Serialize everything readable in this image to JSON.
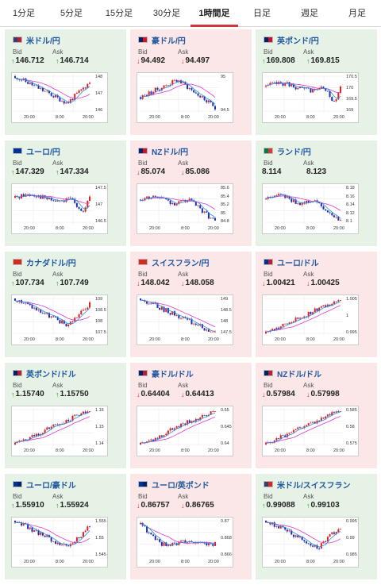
{
  "tabs": [
    {
      "label": "1分足",
      "active": false
    },
    {
      "label": "5分足",
      "active": false
    },
    {
      "label": "15分足",
      "active": false
    },
    {
      "label": "30分足",
      "active": false
    },
    {
      "label": "1時間足",
      "active": true
    },
    {
      "label": "日足",
      "active": false
    },
    {
      "label": "週足",
      "active": false
    },
    {
      "label": "月足",
      "active": false
    }
  ],
  "labels": {
    "bid": "Bid",
    "ask": "Ask"
  },
  "colors": {
    "up_bg": "#e6f2e6",
    "down_bg": "#fbe7e7",
    "up_arrow": "#2f9a2f",
    "down_arrow": "#d03636",
    "candle_up": "#e02020",
    "candle_down": "#1a2fb0",
    "ma1": "#d23cd2",
    "ma2": "#2a8fd8"
  },
  "pairs": [
    {
      "name": "米ドル/円",
      "flag": [
        "#3c3b6e",
        "#b22234"
      ],
      "bg": "up",
      "bid": "146.712",
      "ask": "146.714",
      "bid_dir": "up",
      "ask_dir": "up",
      "yticks": [
        "148",
        "147",
        "146"
      ],
      "xticks": [
        "20:00",
        "8:00",
        "20:00"
      ],
      "seed": 11,
      "trend": "down_up"
    },
    {
      "name": "豪ドル/円",
      "flag": [
        "#012169",
        "#cf142b"
      ],
      "bg": "down",
      "bid": "94.492",
      "ask": "94.497",
      "bid_dir": "down",
      "ask_dir": "down",
      "yticks": [
        "95",
        "94.5"
      ],
      "xticks": [
        "20:00",
        "8:00",
        "20:00"
      ],
      "seed": 23,
      "trend": "up_down"
    },
    {
      "name": "英ポンド/円",
      "flag": [
        "#012169",
        "#c8102e"
      ],
      "bg": "up",
      "bid": "169.808",
      "ask": "169.815",
      "bid_dir": "up",
      "ask_dir": "up",
      "yticks": [
        "170.5",
        "170",
        "169.5",
        "169"
      ],
      "xticks": [
        "20:00",
        "8:00",
        "20:00"
      ],
      "seed": 37,
      "trend": "flat_dip"
    },
    {
      "name": "ユーロ/円",
      "flag": [
        "#003399",
        "#003399"
      ],
      "bg": "up",
      "bid": "147.329",
      "ask": "147.334",
      "bid_dir": "up",
      "ask_dir": "up",
      "yticks": [
        "147.5",
        "147",
        "146.5"
      ],
      "xticks": [
        "20:00",
        "8:00",
        "20:00"
      ],
      "seed": 41,
      "trend": "flat_dip"
    },
    {
      "name": "NZドル/円",
      "flag": [
        "#012169",
        "#cc142b"
      ],
      "bg": "down",
      "bid": "85.074",
      "ask": "85.086",
      "bid_dir": "down",
      "ask_dir": "down",
      "yticks": [
        "85.6",
        "85.4",
        "85.2",
        "85",
        "84.8"
      ],
      "xticks": [
        "20:00",
        "8:00",
        "20:00"
      ],
      "seed": 53,
      "trend": "flat_down"
    },
    {
      "name": "ランド/円",
      "flag": [
        "#007a4d",
        "#de3831"
      ],
      "bg": "up",
      "bid": "8.114",
      "ask": "8.123",
      "bid_dir": "",
      "ask_dir": "",
      "yticks": [
        "8.18",
        "8.16",
        "8.14",
        "8.12",
        "8.1"
      ],
      "xticks": [
        "20:00",
        "8:00",
        "20:00"
      ],
      "seed": 61,
      "trend": "flat_down"
    },
    {
      "name": "カナダドル/円",
      "flag": [
        "#d52b1e",
        "#d52b1e"
      ],
      "bg": "up",
      "bid": "107.734",
      "ask": "107.749",
      "bid_dir": "up",
      "ask_dir": "up",
      "yticks": [
        "109",
        "108.5",
        "108",
        "107.5"
      ],
      "xticks": [
        "20:00",
        "8:00",
        "20:00"
      ],
      "seed": 71,
      "trend": "down_up"
    },
    {
      "name": "スイスフラン/円",
      "flag": [
        "#d52b1e",
        "#d52b1e"
      ],
      "bg": "down",
      "bid": "148.042",
      "ask": "148.058",
      "bid_dir": "down",
      "ask_dir": "down",
      "yticks": [
        "149",
        "148.5",
        "148",
        "147.5"
      ],
      "xticks": [
        "20:00",
        "8:00",
        "20:00"
      ],
      "seed": 83,
      "trend": "down"
    },
    {
      "name": "ユーロ/ドル",
      "flag": [
        "#003399",
        "#b22234"
      ],
      "bg": "down",
      "bid": "1.00421",
      "ask": "1.00425",
      "bid_dir": "down",
      "ask_dir": "down",
      "yticks": [
        "1.005",
        "1",
        "0.995"
      ],
      "xticks": [
        "20:00",
        "8:00",
        "20:00"
      ],
      "seed": 97,
      "trend": "up"
    },
    {
      "name": "英ポンド/ドル",
      "flag": [
        "#012169",
        "#b22234"
      ],
      "bg": "up",
      "bid": "1.15740",
      "ask": "1.15750",
      "bid_dir": "up",
      "ask_dir": "up",
      "yticks": [
        "1.16",
        "1.15",
        "1.14"
      ],
      "xticks": [
        "20:00",
        "8:00",
        "20:00"
      ],
      "seed": 103,
      "trend": "up"
    },
    {
      "name": "豪ドル/ドル",
      "flag": [
        "#012169",
        "#b22234"
      ],
      "bg": "down",
      "bid": "0.64404",
      "ask": "0.64413",
      "bid_dir": "down",
      "ask_dir": "down",
      "yticks": [
        "0.65",
        "0.645",
        "0.64"
      ],
      "xticks": [
        "20:00",
        "8:00",
        "20:00"
      ],
      "seed": 113,
      "trend": "up"
    },
    {
      "name": "NZドル/ドル",
      "flag": [
        "#012169",
        "#b22234"
      ],
      "bg": "down",
      "bid": "0.57984",
      "ask": "0.57998",
      "bid_dir": "down",
      "ask_dir": "down",
      "yticks": [
        "0.585",
        "0.58",
        "0.575"
      ],
      "xticks": [
        "20:00",
        "8:00",
        "20:00"
      ],
      "seed": 127,
      "trend": "up"
    },
    {
      "name": "ユーロ/豪ドル",
      "flag": [
        "#003399",
        "#012169"
      ],
      "bg": "up",
      "bid": "1.55910",
      "ask": "1.55924",
      "bid_dir": "up",
      "ask_dir": "up",
      "yticks": [
        "1.555",
        "1.55",
        "1.545"
      ],
      "xticks": [
        "20:00",
        "8:00",
        "20:00"
      ],
      "seed": 131,
      "trend": "down_up"
    },
    {
      "name": "ユーロ/英ポンド",
      "flag": [
        "#003399",
        "#012169"
      ],
      "bg": "down",
      "bid": "0.86757",
      "ask": "0.86765",
      "bid_dir": "down",
      "ask_dir": "down",
      "yticks": [
        "0.87",
        "0.868",
        "0.866"
      ],
      "xticks": [
        "20:00",
        "8:00",
        "20:00"
      ],
      "seed": 139,
      "trend": "down_flat"
    },
    {
      "name": "米ドル/スイスフラン",
      "flag": [
        "#3c3b6e",
        "#d52b1e"
      ],
      "bg": "up",
      "bid": "0.99088",
      "ask": "0.99103",
      "bid_dir": "up",
      "ask_dir": "up",
      "yticks": [
        "0.995",
        "0.99",
        "0.985"
      ],
      "xticks": [
        "20:00",
        "8:00",
        "20:00"
      ],
      "seed": 149,
      "trend": "down_up"
    }
  ]
}
